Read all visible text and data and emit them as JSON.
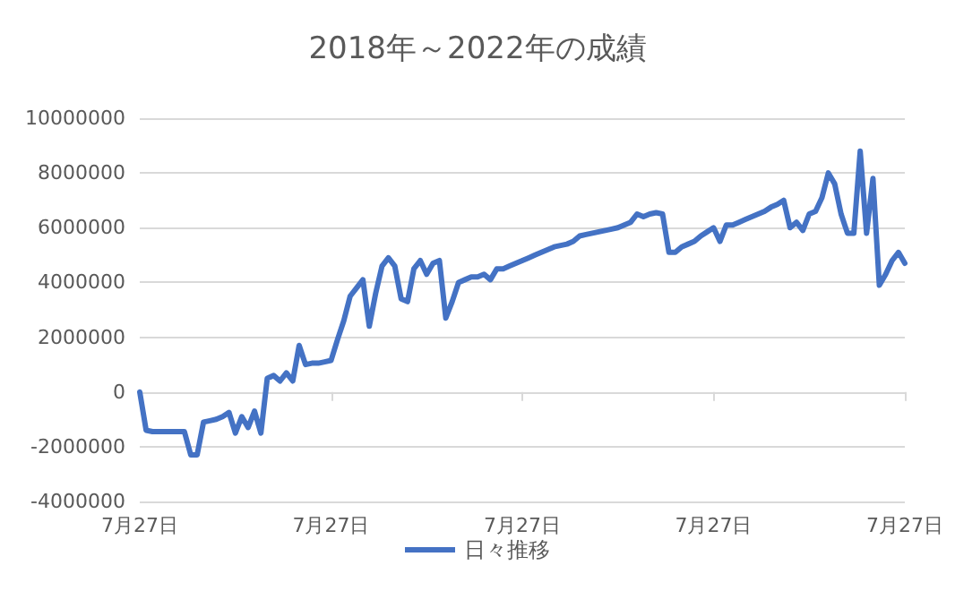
{
  "chart_data": {
    "type": "line",
    "title": "2018年～2022年の成績",
    "categories": [
      "7月27日",
      null,
      null,
      null,
      null,
      null,
      null,
      null,
      null,
      null,
      null,
      null,
      null,
      null,
      null,
      null,
      null,
      null,
      null,
      null,
      null,
      null,
      null,
      null,
      null,
      null,
      null,
      null,
      null,
      null,
      "7月27日",
      null,
      null,
      null,
      null,
      null,
      null,
      null,
      null,
      null,
      null,
      null,
      null,
      null,
      null,
      null,
      null,
      null,
      null,
      null,
      null,
      null,
      null,
      null,
      null,
      null,
      null,
      null,
      null,
      null,
      "7月27日",
      null,
      null,
      null,
      null,
      null,
      null,
      null,
      null,
      null,
      null,
      null,
      null,
      null,
      null,
      null,
      null,
      null,
      null,
      null,
      null,
      null,
      null,
      null,
      null,
      null,
      null,
      null,
      null,
      null,
      "7月27日",
      null,
      null,
      null,
      null,
      null,
      null,
      null,
      null,
      null,
      null,
      null,
      null,
      null,
      null,
      null,
      null,
      null,
      null,
      null,
      null,
      null,
      null,
      null,
      null,
      null,
      null,
      null,
      null,
      null,
      "7月27日"
    ],
    "series": [
      {
        "name": "日々推移",
        "color": "#4472c4",
        "values": [
          0,
          -1400000,
          -1450000,
          -1450000,
          -1450000,
          -1450000,
          -1450000,
          -1450000,
          -2300000,
          -2300000,
          -1100000,
          -1050000,
          -1000000,
          -900000,
          -750000,
          -1500000,
          -900000,
          -1300000,
          -700000,
          -1500000,
          500000,
          600000,
          400000,
          700000,
          400000,
          1700000,
          1000000,
          1050000,
          1050000,
          1100000,
          1150000,
          1900000,
          2600000,
          3500000,
          3800000,
          4100000,
          2400000,
          3600000,
          4600000,
          4900000,
          4600000,
          3400000,
          3300000,
          4500000,
          4800000,
          4300000,
          4700000,
          4800000,
          2700000,
          3300000,
          4000000,
          4100000,
          4200000,
          4200000,
          4300000,
          4100000,
          4500000,
          4500000,
          4600000,
          4700000,
          4800000,
          4900000,
          5000000,
          5100000,
          5200000,
          5300000,
          5350000,
          5400000,
          5500000,
          5700000,
          5750000,
          5800000,
          5850000,
          5900000,
          5950000,
          6000000,
          6100000,
          6200000,
          6500000,
          6400000,
          6500000,
          6550000,
          6500000,
          5100000,
          5100000,
          5300000,
          5400000,
          5500000,
          5700000,
          5850000,
          6000000,
          5500000,
          6100000,
          6100000,
          6200000,
          6300000,
          6400000,
          6500000,
          6600000,
          6750000,
          6850000,
          7000000,
          6000000,
          6200000,
          5900000,
          6500000,
          6600000,
          7100000,
          8000000,
          7600000,
          6500000,
          5800000,
          5800000,
          8800000,
          5800000,
          7800000,
          3900000,
          4300000,
          4800000,
          5100000,
          4700000
        ]
      }
    ],
    "ylim": [
      -4000000,
      10000000
    ],
    "yticks": [
      -4000000,
      -2000000,
      0,
      2000000,
      4000000,
      6000000,
      8000000,
      10000000
    ],
    "grid": "y",
    "legend": "bottom",
    "marker": "none",
    "line_style": "solid"
  }
}
